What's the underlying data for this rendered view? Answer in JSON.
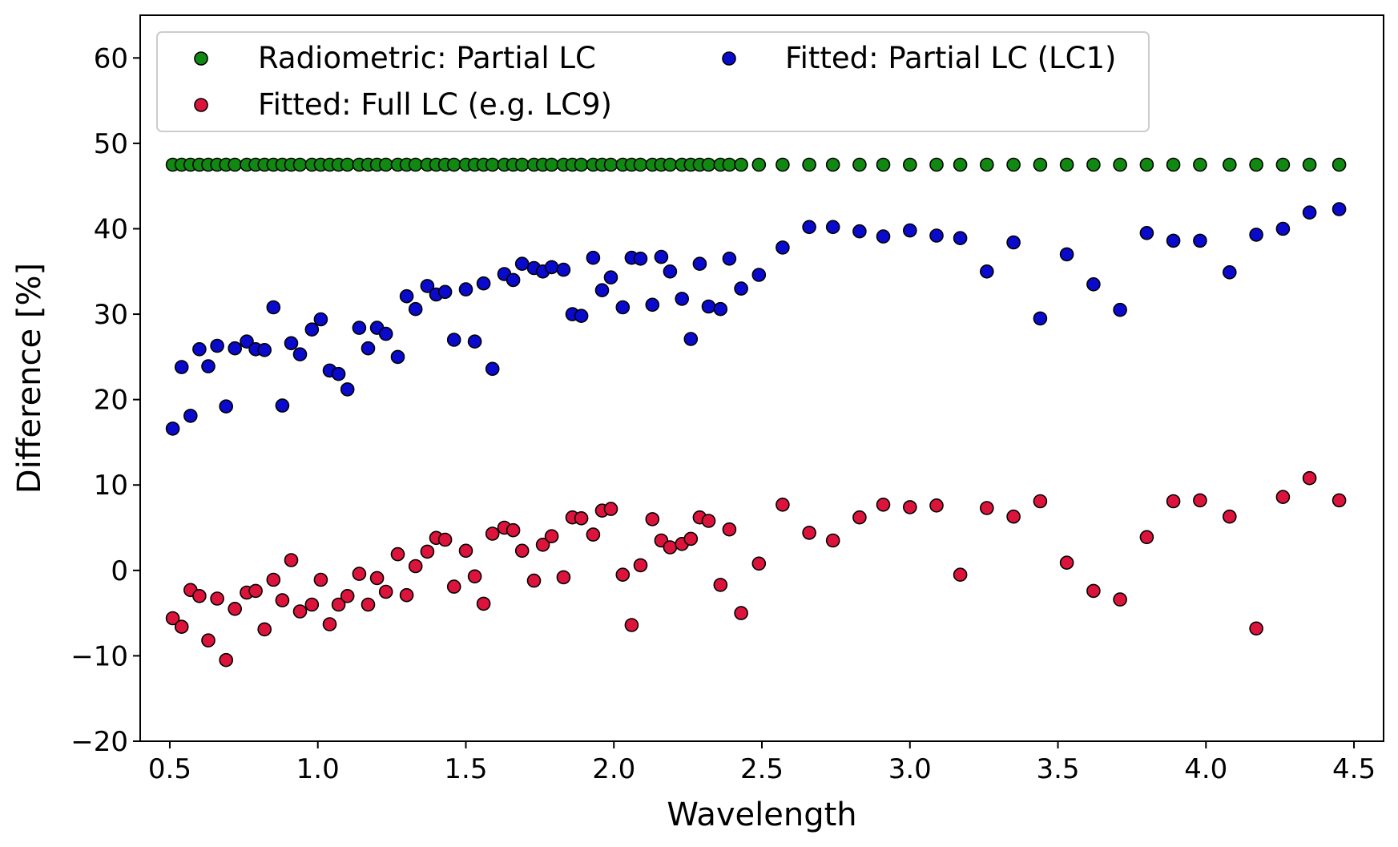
{
  "chart_data": {
    "type": "scatter",
    "title": "",
    "xlabel": "Wavelength",
    "ylabel": "Difference [%]",
    "xlim": [
      0.4,
      4.6
    ],
    "ylim": [
      -20,
      65
    ],
    "xticks": [
      0.5,
      1.0,
      1.5,
      2.0,
      2.5,
      3.0,
      3.5,
      4.0,
      4.5
    ],
    "xtick_labels": [
      "0.5",
      "1.0",
      "1.5",
      "2.0",
      "2.5",
      "3.0",
      "3.5",
      "4.0",
      "4.5"
    ],
    "yticks": [
      -20,
      -10,
      0,
      10,
      20,
      30,
      40,
      50,
      60
    ],
    "ytick_labels": [
      "−20",
      "−10",
      "0",
      "10",
      "20",
      "30",
      "40",
      "50",
      "60"
    ],
    "grid": false,
    "legend_position": "top-left",
    "series": [
      {
        "name": "Radiometric: Partial LC",
        "color": "#118811",
        "x": [
          0.51,
          0.54,
          0.57,
          0.6,
          0.63,
          0.66,
          0.69,
          0.72,
          0.76,
          0.79,
          0.82,
          0.85,
          0.88,
          0.91,
          0.94,
          0.98,
          1.01,
          1.04,
          1.07,
          1.1,
          1.14,
          1.17,
          1.2,
          1.23,
          1.27,
          1.3,
          1.33,
          1.37,
          1.4,
          1.43,
          1.46,
          1.5,
          1.53,
          1.56,
          1.59,
          1.63,
          1.66,
          1.69,
          1.73,
          1.76,
          1.79,
          1.83,
          1.86,
          1.89,
          1.93,
          1.96,
          1.99,
          2.03,
          2.06,
          2.09,
          2.13,
          2.16,
          2.19,
          2.23,
          2.26,
          2.29,
          2.32,
          2.36,
          2.39,
          2.43,
          2.49,
          2.57,
          2.66,
          2.74,
          2.83,
          2.91,
          3.0,
          3.09,
          3.17,
          3.26,
          3.35,
          3.44,
          3.53,
          3.62,
          3.71,
          3.8,
          3.89,
          3.98,
          4.08,
          4.17,
          4.26,
          4.35,
          4.45
        ],
        "y": [
          47.5,
          47.5,
          47.5,
          47.5,
          47.5,
          47.5,
          47.5,
          47.5,
          47.5,
          47.5,
          47.5,
          47.5,
          47.5,
          47.5,
          47.5,
          47.5,
          47.5,
          47.5,
          47.5,
          47.5,
          47.5,
          47.5,
          47.5,
          47.5,
          47.5,
          47.5,
          47.5,
          47.5,
          47.5,
          47.5,
          47.5,
          47.5,
          47.5,
          47.5,
          47.5,
          47.5,
          47.5,
          47.5,
          47.5,
          47.5,
          47.5,
          47.5,
          47.5,
          47.5,
          47.5,
          47.5,
          47.5,
          47.5,
          47.5,
          47.5,
          47.5,
          47.5,
          47.5,
          47.5,
          47.5,
          47.5,
          47.5,
          47.5,
          47.5,
          47.5,
          47.5,
          47.5,
          47.5,
          47.5,
          47.5,
          47.5,
          47.5,
          47.5,
          47.5,
          47.5,
          47.5,
          47.5,
          47.5,
          47.5,
          47.5,
          47.5,
          47.5,
          47.5,
          47.5,
          47.5,
          47.5,
          47.5,
          47.5
        ]
      },
      {
        "name": "Fitted: Full LC (e.g. LC9)",
        "color": "#dc143c",
        "x": [
          0.51,
          0.54,
          0.57,
          0.6,
          0.63,
          0.66,
          0.69,
          0.72,
          0.76,
          0.79,
          0.82,
          0.85,
          0.88,
          0.91,
          0.94,
          0.98,
          1.01,
          1.04,
          1.07,
          1.1,
          1.14,
          1.17,
          1.2,
          1.23,
          1.27,
          1.3,
          1.33,
          1.37,
          1.4,
          1.43,
          1.46,
          1.5,
          1.53,
          1.56,
          1.59,
          1.63,
          1.66,
          1.69,
          1.73,
          1.76,
          1.79,
          1.83,
          1.86,
          1.89,
          1.93,
          1.96,
          1.99,
          2.03,
          2.06,
          2.09,
          2.13,
          2.16,
          2.19,
          2.23,
          2.26,
          2.29,
          2.32,
          2.36,
          2.39,
          2.43,
          2.49,
          2.57,
          2.66,
          2.74,
          2.83,
          2.91,
          3.0,
          3.09,
          3.17,
          3.26,
          3.35,
          3.44,
          3.53,
          3.62,
          3.71,
          3.8,
          3.89,
          3.98,
          4.08,
          4.17,
          4.26,
          4.35,
          4.45
        ],
        "y": [
          -5.6,
          -6.6,
          -2.3,
          -3.0,
          -8.2,
          -3.3,
          -10.5,
          -4.5,
          -2.6,
          -2.4,
          -6.9,
          -1.1,
          -3.5,
          1.2,
          -4.8,
          -4.0,
          -1.1,
          -6.3,
          -4.0,
          -3.0,
          -0.4,
          -4.0,
          -0.9,
          -2.5,
          1.9,
          -2.9,
          0.5,
          2.2,
          3.8,
          3.6,
          -1.9,
          2.3,
          -0.7,
          -3.9,
          4.3,
          5.0,
          4.7,
          2.3,
          -1.2,
          3.0,
          4.0,
          -0.8,
          6.2,
          6.1,
          4.2,
          7.0,
          7.2,
          -0.5,
          -6.4,
          0.6,
          6.0,
          3.5,
          2.7,
          3.1,
          3.7,
          6.2,
          5.8,
          -1.7,
          4.8,
          -5.0,
          0.8,
          7.7,
          4.4,
          3.5,
          6.2,
          7.7,
          7.4,
          7.6,
          -0.5,
          7.3,
          6.3,
          8.1,
          0.9,
          -2.4,
          -3.4,
          3.9,
          8.1,
          8.2,
          6.3,
          -6.8,
          8.6,
          10.8,
          8.2
        ]
      },
      {
        "name": "Fitted: Partial LC (LC1)",
        "color": "#0a0acd",
        "x": [
          0.51,
          0.54,
          0.57,
          0.6,
          0.63,
          0.66,
          0.69,
          0.72,
          0.76,
          0.79,
          0.82,
          0.85,
          0.88,
          0.91,
          0.94,
          0.98,
          1.01,
          1.04,
          1.07,
          1.1,
          1.14,
          1.17,
          1.2,
          1.23,
          1.27,
          1.3,
          1.33,
          1.37,
          1.4,
          1.43,
          1.46,
          1.5,
          1.53,
          1.56,
          1.59,
          1.63,
          1.66,
          1.69,
          1.73,
          1.76,
          1.79,
          1.83,
          1.86,
          1.89,
          1.93,
          1.96,
          1.99,
          2.03,
          2.06,
          2.09,
          2.13,
          2.16,
          2.19,
          2.23,
          2.26,
          2.29,
          2.32,
          2.36,
          2.39,
          2.43,
          2.49,
          2.57,
          2.66,
          2.74,
          2.83,
          2.91,
          3.0,
          3.09,
          3.17,
          3.26,
          3.35,
          3.44,
          3.53,
          3.62,
          3.71,
          3.8,
          3.89,
          3.98,
          4.08,
          4.17,
          4.26,
          4.35,
          4.45
        ],
        "y": [
          16.6,
          23.8,
          18.1,
          25.9,
          23.9,
          26.3,
          19.2,
          26.0,
          26.8,
          25.9,
          25.8,
          30.8,
          19.3,
          26.6,
          25.3,
          28.2,
          29.4,
          23.4,
          23.0,
          21.2,
          28.4,
          26.0,
          28.4,
          27.7,
          25.0,
          32.1,
          30.6,
          33.3,
          32.3,
          32.6,
          27.0,
          32.9,
          26.8,
          33.6,
          23.6,
          34.7,
          34.0,
          35.9,
          35.4,
          35.0,
          35.5,
          35.2,
          30.0,
          29.8,
          36.6,
          32.8,
          34.3,
          30.8,
          36.6,
          36.5,
          31.1,
          36.7,
          35.0,
          31.8,
          27.1,
          35.9,
          30.9,
          30.6,
          36.5,
          33.0,
          34.6,
          37.8,
          40.2,
          40.2,
          39.7,
          39.1,
          39.8,
          39.2,
          38.9,
          35.0,
          38.4,
          29.5,
          37.0,
          33.5,
          30.5,
          39.5,
          38.6,
          38.6,
          34.9,
          39.3,
          40.0,
          41.9,
          42.3
        ]
      }
    ]
  }
}
